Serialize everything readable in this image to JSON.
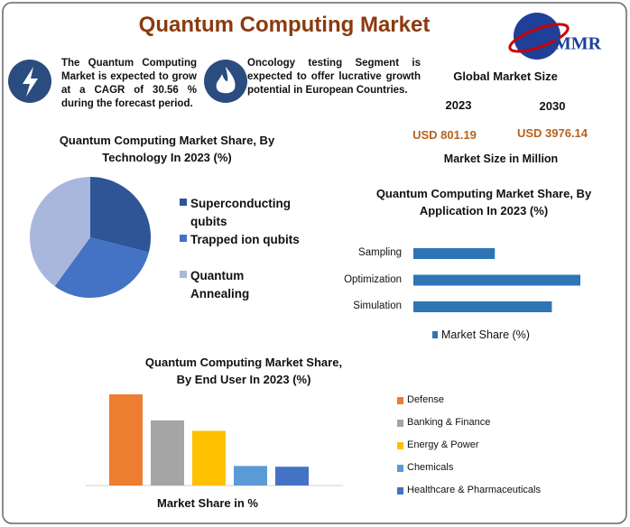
{
  "header": {
    "title": "Quantum Computing Market",
    "logo": "MMR"
  },
  "highlights": [
    "The Quantum Computing Market is expected to grow at a CAGR of 30.56 % during the forecast period.",
    "Oncology testing Segment is expected to offer lucrative growth potential in European Countries."
  ],
  "market_size": {
    "title": "Global Market Size",
    "years": [
      "2023",
      "2030"
    ],
    "amounts": [
      "USD 801.19",
      "USD 3976.14"
    ],
    "note": "Market Size in Million"
  },
  "chart_data": [
    {
      "type": "pie",
      "title": "Quantum Computing Market Share, By Technology In 2023 (%)",
      "categories": [
        "Superconducting qubits",
        "Trapped ion qubits",
        "Quantum Annealing"
      ],
      "values": [
        29,
        31,
        40
      ],
      "colors": [
        "#2f5597",
        "#4472c4",
        "#a9b7dc"
      ]
    },
    {
      "type": "hbar",
      "title": "Quantum Computing  Market Share, By Application In 2023 (%)",
      "categories": [
        "Sampling",
        "Optimization",
        "Simulation"
      ],
      "series": [
        {
          "name": "Market Share (%)",
          "color": "#2e75b6",
          "values": [
            20,
            41,
            34
          ]
        }
      ]
    },
    {
      "type": "bar",
      "title": "Quantum Computing Market Share, By End User In 2023 (%)",
      "xlabel": "Market Share in %",
      "categories": [
        "Defense",
        "Banking & Finance",
        "Energy & Power",
        "Chemicals",
        "Healthcare & Pharmaceuticals"
      ],
      "values": [
        35,
        25,
        21,
        7.5,
        7.2
      ],
      "colors": [
        "#ed7d31",
        "#a5a5a5",
        "#ffc000",
        "#5b9bd5",
        "#4472c4"
      ]
    }
  ]
}
